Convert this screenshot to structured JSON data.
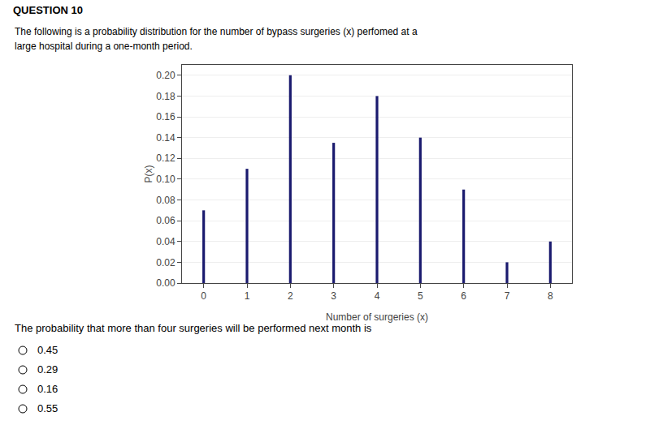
{
  "chart_data": {
    "type": "bar",
    "title": "QUESTION 10",
    "subtitle": [
      "The following is a probability distribution for the number of bypass surgeries (x) perfomed at a",
      "large hospital during a one-month period."
    ],
    "x": [
      0,
      1,
      2,
      3,
      4,
      5,
      6,
      7,
      8
    ],
    "values": [
      0.07,
      0.11,
      0.2,
      0.135,
      0.18,
      0.14,
      0.09,
      0.02,
      0.04
    ],
    "color": "#1a1a6e",
    "xlabel": "Number of surgeries (x)",
    "ylabel": "P(x)",
    "xlim": [
      -0.5,
      8.5
    ],
    "xticks": [
      0,
      1,
      2,
      3,
      4,
      5,
      6,
      7,
      8
    ],
    "ylim": [
      0.0,
      0.21
    ],
    "yticks": [
      {
        "value": 0,
        "label": "0.00"
      },
      0.02,
      0.04,
      0.06,
      0.08,
      {
        "value": 0.1,
        "label": "0.10"
      },
      0.12,
      0.14,
      0.16,
      0.18,
      {
        "value": 0.2,
        "label": "0.20"
      }
    ],
    "grid": true,
    "annotations": [
      "The probability that more than four surgeries will be performed next month is"
    ],
    "options": [
      "0.45",
      "0.29",
      "0.16",
      "0.55"
    ]
  }
}
